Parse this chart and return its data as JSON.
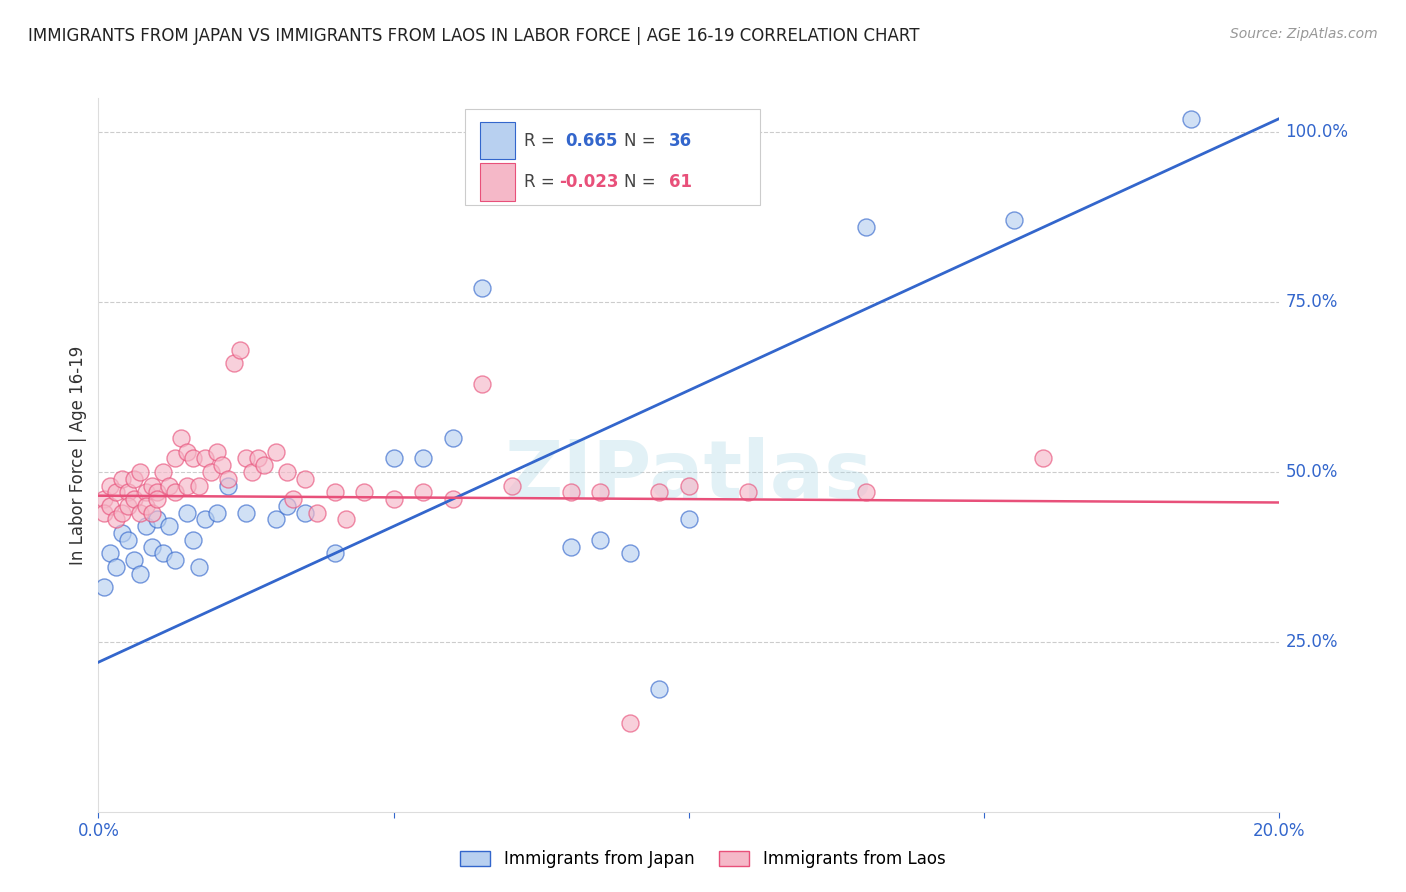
{
  "title": "IMMIGRANTS FROM JAPAN VS IMMIGRANTS FROM LAOS IN LABOR FORCE | AGE 16-19 CORRELATION CHART",
  "source": "Source: ZipAtlas.com",
  "ylabel": "In Labor Force | Age 16-19",
  "xlim": [
    0.0,
    0.2
  ],
  "ylim": [
    0.0,
    1.05
  ],
  "ytick_labels_right": [
    "25.0%",
    "50.0%",
    "75.0%",
    "100.0%"
  ],
  "yticks_right": [
    0.25,
    0.5,
    0.75,
    1.0
  ],
  "background_color": "#ffffff",
  "grid_color": "#cccccc",
  "japan_color": "#b8d0f0",
  "laos_color": "#f5b8c8",
  "japan_line_color": "#3366cc",
  "laos_line_color": "#e8507a",
  "japan_R": 0.665,
  "japan_N": 36,
  "laos_R": -0.023,
  "laos_N": 61,
  "watermark": "ZIPatlas",
  "japan_line_x0": 0.0,
  "japan_line_y0": 0.22,
  "japan_line_x1": 0.2,
  "japan_line_y1": 1.02,
  "laos_line_x0": 0.0,
  "laos_line_y0": 0.465,
  "laos_line_x1": 0.2,
  "laos_line_y1": 0.455,
  "japan_x": [
    0.001,
    0.002,
    0.003,
    0.004,
    0.005,
    0.006,
    0.007,
    0.008,
    0.009,
    0.01,
    0.011,
    0.012,
    0.013,
    0.015,
    0.016,
    0.017,
    0.018,
    0.02,
    0.022,
    0.025,
    0.03,
    0.032,
    0.035,
    0.04,
    0.05,
    0.055,
    0.06,
    0.065,
    0.08,
    0.085,
    0.09,
    0.095,
    0.1,
    0.13,
    0.155,
    0.185
  ],
  "japan_y": [
    0.33,
    0.38,
    0.36,
    0.41,
    0.4,
    0.37,
    0.35,
    0.42,
    0.39,
    0.43,
    0.38,
    0.42,
    0.37,
    0.44,
    0.4,
    0.36,
    0.43,
    0.44,
    0.48,
    0.44,
    0.43,
    0.45,
    0.44,
    0.38,
    0.52,
    0.52,
    0.55,
    0.77,
    0.39,
    0.4,
    0.38,
    0.18,
    0.43,
    0.86,
    0.87,
    1.02
  ],
  "laos_x": [
    0.001,
    0.001,
    0.002,
    0.002,
    0.003,
    0.003,
    0.004,
    0.004,
    0.005,
    0.005,
    0.006,
    0.006,
    0.007,
    0.007,
    0.008,
    0.008,
    0.009,
    0.009,
    0.01,
    0.01,
    0.011,
    0.012,
    0.013,
    0.013,
    0.014,
    0.015,
    0.015,
    0.016,
    0.017,
    0.018,
    0.019,
    0.02,
    0.021,
    0.022,
    0.023,
    0.024,
    0.025,
    0.026,
    0.027,
    0.028,
    0.03,
    0.032,
    0.033,
    0.035,
    0.037,
    0.04,
    0.042,
    0.045,
    0.05,
    0.055,
    0.06,
    0.065,
    0.07,
    0.08,
    0.085,
    0.09,
    0.095,
    0.1,
    0.11,
    0.13,
    0.16
  ],
  "laos_y": [
    0.46,
    0.44,
    0.48,
    0.45,
    0.47,
    0.43,
    0.49,
    0.44,
    0.47,
    0.45,
    0.49,
    0.46,
    0.5,
    0.44,
    0.47,
    0.45,
    0.48,
    0.44,
    0.47,
    0.46,
    0.5,
    0.48,
    0.52,
    0.47,
    0.55,
    0.53,
    0.48,
    0.52,
    0.48,
    0.52,
    0.5,
    0.53,
    0.51,
    0.49,
    0.66,
    0.68,
    0.52,
    0.5,
    0.52,
    0.51,
    0.53,
    0.5,
    0.46,
    0.49,
    0.44,
    0.47,
    0.43,
    0.47,
    0.46,
    0.47,
    0.46,
    0.63,
    0.48,
    0.47,
    0.47,
    0.13,
    0.47,
    0.48,
    0.47,
    0.47,
    0.52
  ]
}
